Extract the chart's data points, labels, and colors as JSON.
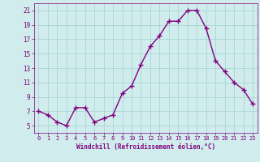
{
  "x": [
    0,
    1,
    2,
    3,
    4,
    5,
    6,
    7,
    8,
    9,
    10,
    11,
    12,
    13,
    14,
    15,
    16,
    17,
    18,
    19,
    20,
    21,
    22,
    23
  ],
  "y": [
    7,
    6.5,
    5.5,
    5,
    7.5,
    7.5,
    5.5,
    6,
    6.5,
    9.5,
    10.5,
    13.5,
    16,
    17.5,
    19.5,
    19.5,
    21,
    21,
    18.5,
    14,
    12.5,
    11,
    10,
    8
  ],
  "line_color": "#800080",
  "bg_color": "#d0ecec",
  "grid_color": "#b0d8d8",
  "xlabel": "Windchill (Refroidissement éolien,°C)",
  "xlabel_color": "#800080",
  "tick_color": "#800080",
  "ylim": [
    4,
    22
  ],
  "xlim": [
    -0.5,
    23.5
  ],
  "yticks": [
    5,
    7,
    9,
    11,
    13,
    15,
    17,
    19,
    21
  ],
  "xticks": [
    0,
    1,
    2,
    3,
    4,
    5,
    6,
    7,
    8,
    9,
    10,
    11,
    12,
    13,
    14,
    15,
    16,
    17,
    18,
    19,
    20,
    21,
    22,
    23
  ],
  "marker": "+",
  "linewidth": 1.0,
  "markersize": 4,
  "markeredgewidth": 1.0
}
